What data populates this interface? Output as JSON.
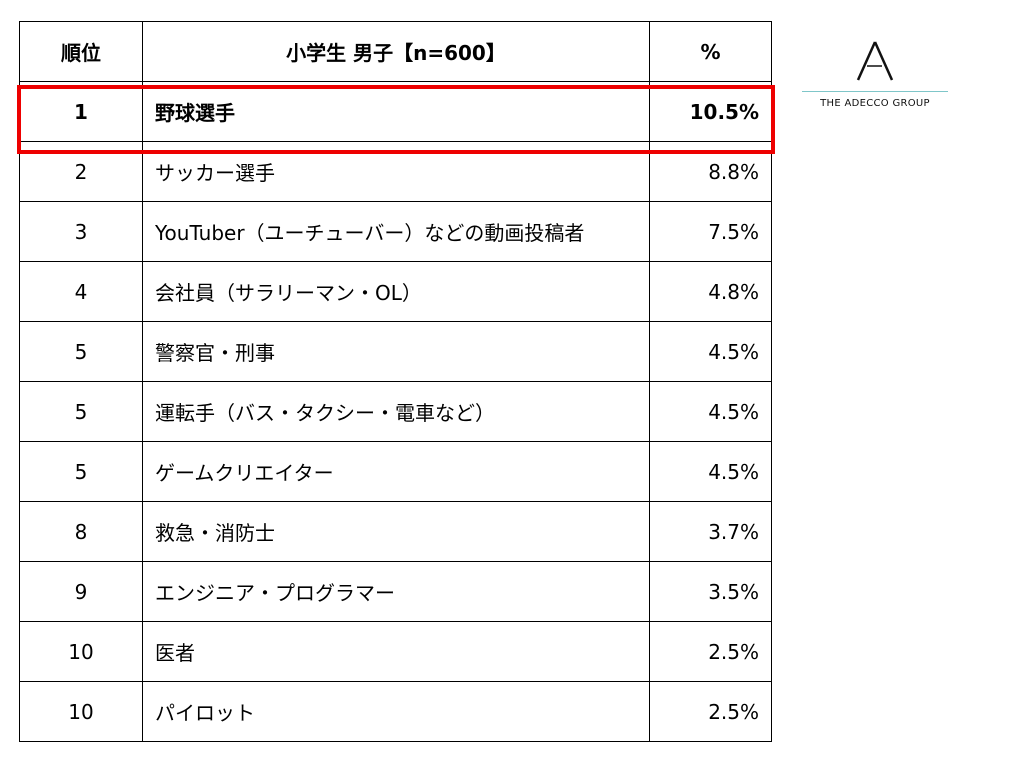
{
  "header": {
    "rank": "順位",
    "title": "小学生 男子【n=600】",
    "percent": "%"
  },
  "rows": [
    {
      "rank": "1",
      "job": "野球選手",
      "percent": "10.5%"
    },
    {
      "rank": "2",
      "job": "サッカー選手",
      "percent": "8.8%"
    },
    {
      "rank": "3",
      "job": "YouTuber（ユーチューバー）などの動画投稿者",
      "percent": "7.5%"
    },
    {
      "rank": "4",
      "job": "会社員（サラリーマン・OL）",
      "percent": "4.8%"
    },
    {
      "rank": "5",
      "job": "警察官・刑事",
      "percent": "4.5%"
    },
    {
      "rank": "5",
      "job": "運転手（バス・タクシー・電車など）",
      "percent": "4.5%"
    },
    {
      "rank": "5",
      "job": "ゲームクリエイター",
      "percent": "4.5%"
    },
    {
      "rank": "8",
      "job": "救急・消防士",
      "percent": "3.7%"
    },
    {
      "rank": "9",
      "job": "エンジニア・プログラマー",
      "percent": "3.5%"
    },
    {
      "rank": "10",
      "job": "医者",
      "percent": "2.5%"
    },
    {
      "rank": "10",
      "job": "パイロット",
      "percent": "2.5%"
    }
  ],
  "logo": {
    "text": "THE ADECCO GROUP"
  },
  "colors": {
    "highlight": "#ee0000",
    "logo_line": "#7fc6c9"
  },
  "chart_data": {
    "type": "table",
    "columns": [
      "順位",
      "小学生 男子【n=600】",
      "%"
    ],
    "categories": [
      "野球選手",
      "サッカー選手",
      "YouTuber（ユーチューバー）などの動画投稿者",
      "会社員（サラリーマン・OL）",
      "警察官・刑事",
      "運転手（バス・タクシー・電車など）",
      "ゲームクリエイター",
      "救急・消防士",
      "エンジニア・プログラマー",
      "医者",
      "パイロット"
    ],
    "ranks": [
      1,
      2,
      3,
      4,
      5,
      5,
      5,
      8,
      9,
      10,
      10
    ],
    "values": [
      10.5,
      8.8,
      7.5,
      4.8,
      4.5,
      4.5,
      4.5,
      3.7,
      3.5,
      2.5,
      2.5
    ],
    "highlighted_rank": 1
  }
}
